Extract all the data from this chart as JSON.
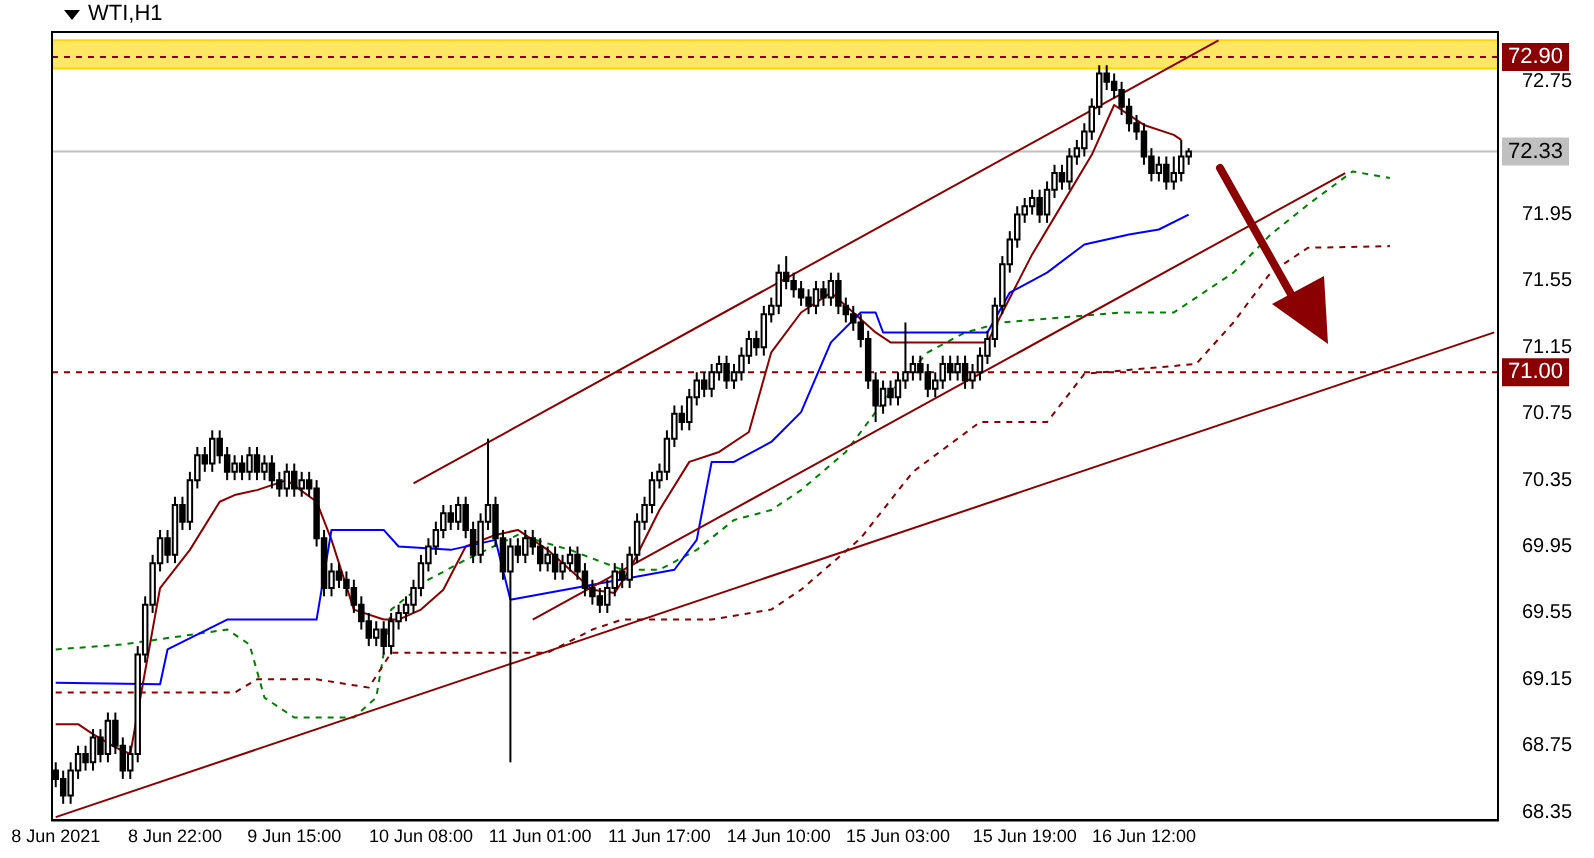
{
  "chart_data": {
    "type": "candlestick",
    "title": "WTI,H1",
    "categories": [
      "8 Jun 2021",
      null,
      null,
      null,
      null,
      null,
      null,
      null,
      null,
      null,
      null,
      null,
      null,
      null,
      null,
      null,
      "8 Jun 22:00",
      null,
      null,
      null,
      null,
      null,
      null,
      null,
      null,
      null,
      null,
      null,
      null,
      null,
      null,
      null,
      "9 Jun 15:00",
      null,
      null,
      null,
      null,
      null,
      null,
      null,
      null,
      null,
      null,
      null,
      null,
      null,
      null,
      null,
      null,
      "10 Jun 08:00",
      null,
      null,
      null,
      null,
      null,
      null,
      null,
      null,
      null,
      null,
      null,
      null,
      null,
      null,
      null,
      "11 Jun 01:00",
      null,
      null,
      null,
      null,
      null,
      null,
      null,
      null,
      null,
      null,
      null,
      null,
      null,
      null,
      null,
      "11 Jun 17:00",
      null,
      null,
      null,
      null,
      null,
      null,
      null,
      null,
      null,
      null,
      null,
      null,
      null,
      null,
      null,
      "14 Jun 10:00",
      null,
      null,
      null,
      null,
      null,
      null,
      null,
      null,
      null,
      null,
      null,
      null,
      null,
      null,
      null,
      "15 Jun 03:00",
      null,
      null,
      null,
      null,
      null,
      null,
      null,
      null,
      null,
      null,
      null,
      null,
      null,
      null,
      null,
      null,
      "15 Jun 19:00",
      null,
      null,
      null,
      null,
      null,
      null,
      null,
      null,
      null,
      null,
      null,
      null,
      null,
      null,
      null,
      "16 Jun 12:00",
      null,
      null,
      null,
      null,
      null,
      null,
      null,
      null,
      null,
      null,
      null,
      null,
      null,
      null,
      null,
      null,
      null,
      null,
      null,
      null,
      null,
      null,
      null,
      null,
      null,
      null,
      null,
      null,
      null,
      null,
      null,
      null,
      null,
      null,
      null,
      null,
      null,
      null,
      null,
      null,
      null,
      null,
      null,
      null,
      null,
      null,
      null
    ],
    "ohlc": [
      [
        68.6,
        68.65,
        68.5,
        68.55
      ],
      [
        68.55,
        68.6,
        68.4,
        68.45
      ],
      [
        68.45,
        68.65,
        68.4,
        68.6
      ],
      [
        68.6,
        68.75,
        68.55,
        68.7
      ],
      [
        68.7,
        68.75,
        68.6,
        68.65
      ],
      [
        68.65,
        68.85,
        68.6,
        68.8
      ],
      [
        68.8,
        68.85,
        68.65,
        68.7
      ],
      [
        68.7,
        68.95,
        68.65,
        68.9
      ],
      [
        68.9,
        68.95,
        68.7,
        68.75
      ],
      [
        68.75,
        68.8,
        68.55,
        68.6
      ],
      [
        68.6,
        68.75,
        68.55,
        68.7
      ],
      [
        68.7,
        69.35,
        68.65,
        69.3
      ],
      [
        69.3,
        69.65,
        69.25,
        69.6
      ],
      [
        69.6,
        69.9,
        69.55,
        69.85
      ],
      [
        69.85,
        70.05,
        69.8,
        70.0
      ],
      [
        70.0,
        70.05,
        69.85,
        69.9
      ],
      [
        69.9,
        70.25,
        69.85,
        70.2
      ],
      [
        70.2,
        70.25,
        70.05,
        70.1
      ],
      [
        70.1,
        70.4,
        70.05,
        70.35
      ],
      [
        70.35,
        70.55,
        70.3,
        70.5
      ],
      [
        70.5,
        70.55,
        70.4,
        70.45
      ],
      [
        70.45,
        70.65,
        70.4,
        70.6
      ],
      [
        70.6,
        70.65,
        70.45,
        70.5
      ],
      [
        70.5,
        70.55,
        70.35,
        70.4
      ],
      [
        70.4,
        70.5,
        70.35,
        70.45
      ],
      [
        70.45,
        70.5,
        70.35,
        70.4
      ],
      [
        70.4,
        70.55,
        70.35,
        70.5
      ],
      [
        70.5,
        70.55,
        70.35,
        70.4
      ],
      [
        70.4,
        70.5,
        70.35,
        70.45
      ],
      [
        70.45,
        70.5,
        70.3,
        70.35
      ],
      [
        70.35,
        70.4,
        70.25,
        70.3
      ],
      [
        70.3,
        70.45,
        70.25,
        70.4
      ],
      [
        70.4,
        70.45,
        70.25,
        70.3
      ],
      [
        70.3,
        70.4,
        70.25,
        70.35
      ],
      [
        70.35,
        70.4,
        70.25,
        70.3
      ],
      [
        70.3,
        70.35,
        69.95,
        70.0
      ],
      [
        70.0,
        70.05,
        69.65,
        69.7
      ],
      [
        69.7,
        69.85,
        69.65,
        69.8
      ],
      [
        69.8,
        69.85,
        69.7,
        69.75
      ],
      [
        69.75,
        69.8,
        69.65,
        69.7
      ],
      [
        69.7,
        69.75,
        69.55,
        69.6
      ],
      [
        69.6,
        69.65,
        69.45,
        69.5
      ],
      [
        69.5,
        69.55,
        69.35,
        69.4
      ],
      [
        69.4,
        69.5,
        69.35,
        69.45
      ],
      [
        69.45,
        69.5,
        69.3,
        69.35
      ],
      [
        69.35,
        69.55,
        69.3,
        69.5
      ],
      [
        69.5,
        69.6,
        69.45,
        69.55
      ],
      [
        69.55,
        69.65,
        69.5,
        69.6
      ],
      [
        69.6,
        69.75,
        69.55,
        69.7
      ],
      [
        69.7,
        69.9,
        69.65,
        69.85
      ],
      [
        69.85,
        70.0,
        69.8,
        69.95
      ],
      [
        69.95,
        70.1,
        69.9,
        70.05
      ],
      [
        70.05,
        70.2,
        70.0,
        70.15
      ],
      [
        70.15,
        70.2,
        70.05,
        70.1
      ],
      [
        70.1,
        70.25,
        70.05,
        70.2
      ],
      [
        70.2,
        70.25,
        70.0,
        70.05
      ],
      [
        70.05,
        70.1,
        69.85,
        69.9
      ],
      [
        69.9,
        70.15,
        69.85,
        70.1
      ],
      [
        70.1,
        70.6,
        70.05,
        70.2
      ],
      [
        70.2,
        70.25,
        69.95,
        70.0
      ],
      [
        70.0,
        70.05,
        69.75,
        69.8
      ],
      [
        69.8,
        70.0,
        68.65,
        69.95
      ],
      [
        69.95,
        70.0,
        69.85,
        69.9
      ],
      [
        69.9,
        70.05,
        69.85,
        70.0
      ],
      [
        70.0,
        70.05,
        69.9,
        69.95
      ],
      [
        69.95,
        70.0,
        69.8,
        69.85
      ],
      [
        69.85,
        69.95,
        69.8,
        69.9
      ],
      [
        69.9,
        69.95,
        69.75,
        69.8
      ],
      [
        69.8,
        69.9,
        69.75,
        69.85
      ],
      [
        69.85,
        69.95,
        69.8,
        69.9
      ],
      [
        69.9,
        69.95,
        69.75,
        69.8
      ],
      [
        69.8,
        69.85,
        69.65,
        69.7
      ],
      [
        69.7,
        69.75,
        69.6,
        69.65
      ],
      [
        69.65,
        69.7,
        69.55,
        69.6
      ],
      [
        69.6,
        69.75,
        69.55,
        69.7
      ],
      [
        69.7,
        69.85,
        69.65,
        69.8
      ],
      [
        69.8,
        69.85,
        69.7,
        69.75
      ],
      [
        69.75,
        69.95,
        69.7,
        69.9
      ],
      [
        69.9,
        70.15,
        69.85,
        70.1
      ],
      [
        70.1,
        70.25,
        70.05,
        70.2
      ],
      [
        70.2,
        70.4,
        70.15,
        70.35
      ],
      [
        70.35,
        70.45,
        70.3,
        70.4
      ],
      [
        70.4,
        70.65,
        70.35,
        70.6
      ],
      [
        70.6,
        70.8,
        70.55,
        70.75
      ],
      [
        70.75,
        70.8,
        70.65,
        70.7
      ],
      [
        70.7,
        70.9,
        70.65,
        70.85
      ],
      [
        70.85,
        71.0,
        70.8,
        70.95
      ],
      [
        70.95,
        71.0,
        70.85,
        70.9
      ],
      [
        70.9,
        71.05,
        70.85,
        71.0
      ],
      [
        71.0,
        71.1,
        70.95,
        71.05
      ],
      [
        71.05,
        71.1,
        70.9,
        70.95
      ],
      [
        70.95,
        71.05,
        70.9,
        71.0
      ],
      [
        71.0,
        71.15,
        70.95,
        71.1
      ],
      [
        71.1,
        71.25,
        71.05,
        71.2
      ],
      [
        71.2,
        71.25,
        71.1,
        71.15
      ],
      [
        71.15,
        71.4,
        71.1,
        71.35
      ],
      [
        71.35,
        71.45,
        71.3,
        71.4
      ],
      [
        71.4,
        71.65,
        71.35,
        71.6
      ],
      [
        71.6,
        71.7,
        71.5,
        71.55
      ],
      [
        71.55,
        71.6,
        71.45,
        71.5
      ],
      [
        71.5,
        71.55,
        71.4,
        71.45
      ],
      [
        71.45,
        71.5,
        71.35,
        71.4
      ],
      [
        71.4,
        71.55,
        71.35,
        71.5
      ],
      [
        71.5,
        71.55,
        71.4,
        71.45
      ],
      [
        71.45,
        71.6,
        71.4,
        71.55
      ],
      [
        71.55,
        71.6,
        71.35,
        71.4
      ],
      [
        71.4,
        71.45,
        71.3,
        71.35
      ],
      [
        71.35,
        71.4,
        71.25,
        71.3
      ],
      [
        71.3,
        71.35,
        71.15,
        71.2
      ],
      [
        71.2,
        71.25,
        70.9,
        70.95
      ],
      [
        70.95,
        71.0,
        70.7,
        70.8
      ],
      [
        70.8,
        70.95,
        70.75,
        70.9
      ],
      [
        70.9,
        70.95,
        70.8,
        70.85
      ],
      [
        70.85,
        71.0,
        70.8,
        70.95
      ],
      [
        70.95,
        71.3,
        70.9,
        71.0
      ],
      [
        71.0,
        71.1,
        70.95,
        71.05
      ],
      [
        71.05,
        71.1,
        70.95,
        71.0
      ],
      [
        71.0,
        71.05,
        70.85,
        70.9
      ],
      [
        70.9,
        71.0,
        70.85,
        70.95
      ],
      [
        70.95,
        71.1,
        70.9,
        71.05
      ],
      [
        71.05,
        71.1,
        70.95,
        71.0
      ],
      [
        71.0,
        71.1,
        70.95,
        71.05
      ],
      [
        71.05,
        71.1,
        70.9,
        70.95
      ],
      [
        70.95,
        71.05,
        70.9,
        71.0
      ],
      [
        71.0,
        71.15,
        70.95,
        71.1
      ],
      [
        71.1,
        71.25,
        71.05,
        71.2
      ],
      [
        71.2,
        71.45,
        71.15,
        71.4
      ],
      [
        71.4,
        71.7,
        71.35,
        71.65
      ],
      [
        71.65,
        71.85,
        71.6,
        71.8
      ],
      [
        71.8,
        72.0,
        71.75,
        71.95
      ],
      [
        71.95,
        72.05,
        71.9,
        72.0
      ],
      [
        72.0,
        72.1,
        71.95,
        72.05
      ],
      [
        72.05,
        72.1,
        71.9,
        71.95
      ],
      [
        71.95,
        72.15,
        71.9,
        72.1
      ],
      [
        72.1,
        72.25,
        72.05,
        72.2
      ],
      [
        72.2,
        72.25,
        72.1,
        72.15
      ],
      [
        72.15,
        72.35,
        72.1,
        72.3
      ],
      [
        72.3,
        72.4,
        72.25,
        72.35
      ],
      [
        72.35,
        72.5,
        72.3,
        72.45
      ],
      [
        72.45,
        72.65,
        72.4,
        72.6
      ],
      [
        72.6,
        72.85,
        72.55,
        72.8
      ],
      [
        72.8,
        72.85,
        72.7,
        72.75
      ],
      [
        72.75,
        72.8,
        72.65,
        72.7
      ],
      [
        72.7,
        72.75,
        72.55,
        72.6
      ],
      [
        72.6,
        72.65,
        72.45,
        72.5
      ],
      [
        72.5,
        72.55,
        72.4,
        72.45
      ],
      [
        72.45,
        72.5,
        72.25,
        72.3
      ],
      [
        72.3,
        72.35,
        72.15,
        72.2
      ],
      [
        72.2,
        72.3,
        72.15,
        72.25
      ],
      [
        72.25,
        72.3,
        72.1,
        72.15
      ],
      [
        72.15,
        72.3,
        72.1,
        72.2
      ],
      [
        72.2,
        72.4,
        72.15,
        72.3
      ],
      [
        72.3,
        72.35,
        72.25,
        72.33
      ],
      null,
      null,
      null,
      null,
      null,
      null,
      null,
      null,
      null,
      null,
      null,
      null,
      null,
      null,
      null,
      null,
      null,
      null,
      null,
      null,
      null,
      null,
      null,
      null,
      null,
      null,
      null,
      null,
      null,
      null,
      null,
      null,
      null,
      null,
      null,
      null,
      null,
      null,
      null,
      null,
      null
    ],
    "series": [
      {
        "type": "line",
        "color": "#008000",
        "line_style": "dashed",
        "values": [
          69.33,
          null,
          null,
          null,
          null,
          null,
          null,
          null,
          null,
          69.36,
          null,
          null,
          null,
          null,
          null,
          null,
          null,
          null,
          null,
          null,
          null,
          null,
          null,
          69.45,
          null,
          null,
          69.36,
          null,
          69.04,
          null,
          null,
          null,
          68.92,
          null,
          null,
          null,
          null,
          null,
          null,
          null,
          68.92,
          null,
          null,
          69.04,
          null,
          69.57,
          null,
          null,
          null,
          null,
          69.75,
          null,
          null,
          null,
          null,
          69.87,
          null,
          null,
          null,
          null,
          null,
          null,
          70.02,
          null,
          null,
          null,
          null,
          null,
          null,
          69.93,
          null,
          null,
          null,
          null,
          null,
          null,
          69.81,
          null,
          null,
          null,
          null,
          69.81,
          null,
          null,
          null,
          null,
          69.93,
          null,
          null,
          null,
          null,
          70.11,
          null,
          null,
          null,
          null,
          70.17,
          null,
          null,
          null,
          70.29,
          null,
          null,
          null,
          null,
          null,
          70.52,
          null,
          null,
          null,
          null,
          null,
          70.88,
          null,
          null,
          null,
          null,
          71.12,
          null,
          null,
          null,
          null,
          71.24,
          null,
          null,
          null,
          null,
          71.3,
          null,
          null,
          null,
          null,
          null,
          null,
          null,
          null,
          null,
          null,
          null,
          null,
          null,
          null,
          null,
          71.36,
          null,
          null,
          null,
          null,
          null,
          null,
          71.36,
          null,
          null,
          null,
          null,
          null,
          null,
          null,
          71.6,
          null,
          null,
          null,
          null,
          71.83,
          null,
          null,
          null,
          null,
          72.01,
          null,
          null,
          null,
          null,
          null,
          72.21,
          null,
          null,
          null,
          null,
          72.17,
          null,
          null,
          null,
          null,
          null,
          null,
          null,
          null,
          null,
          null,
          null,
          null,
          null,
          null
        ]
      },
      {
        "type": "line",
        "color": "#8b0000",
        "line_style": "dashed",
        "values": [
          69.07,
          null,
          null,
          null,
          null,
          null,
          null,
          null,
          null,
          null,
          null,
          null,
          null,
          null,
          null,
          null,
          null,
          null,
          null,
          null,
          null,
          null,
          null,
          null,
          69.07,
          null,
          null,
          69.15,
          null,
          null,
          null,
          null,
          null,
          null,
          null,
          69.15,
          null,
          null,
          null,
          null,
          null,
          null,
          69.1,
          null,
          null,
          69.31,
          null,
          null,
          null,
          null,
          null,
          null,
          null,
          null,
          null,
          null,
          null,
          null,
          null,
          null,
          null,
          null,
          null,
          null,
          null,
          null,
          69.31,
          null,
          null,
          null,
          null,
          null,
          69.45,
          null,
          null,
          null,
          69.51,
          null,
          null,
          null,
          null,
          null,
          null,
          null,
          null,
          null,
          null,
          null,
          69.51,
          null,
          null,
          null,
          null,
          null,
          null,
          null,
          69.57,
          null,
          null,
          null,
          69.69,
          null,
          null,
          null,
          null,
          null,
          null,
          null,
          70.0,
          null,
          null,
          null,
          null,
          null,
          null,
          70.4,
          null,
          null,
          null,
          null,
          null,
          null,
          null,
          null,
          70.7,
          null,
          null,
          null,
          null,
          null,
          null,
          null,
          null,
          70.7,
          null,
          null,
          null,
          null,
          70.99,
          null,
          null,
          null,
          null,
          null,
          null,
          null,
          null,
          null,
          null,
          null,
          null,
          null,
          null,
          71.05,
          null,
          null,
          null,
          null,
          71.3,
          null,
          null,
          null,
          null,
          71.6,
          null,
          null,
          null,
          null,
          71.75,
          null,
          null,
          null,
          null,
          null,
          null,
          null,
          null,
          null,
          null,
          71.76,
          null,
          null,
          null,
          null,
          null,
          null,
          null,
          null,
          null,
          null,
          null,
          null,
          null,
          null
        ]
      },
      {
        "type": "line",
        "color": "#8b0000",
        "values": [
          68.88,
          null,
          null,
          68.88,
          null,
          68.82,
          null,
          null,
          68.74,
          null,
          68.7,
          null,
          69.2,
          null,
          69.7,
          null,
          null,
          null,
          69.93,
          null,
          null,
          null,
          70.22,
          null,
          70.26,
          null,
          null,
          70.29,
          null,
          null,
          null,
          70.35,
          null,
          null,
          null,
          70.22,
          null,
          69.99,
          null,
          null,
          69.57,
          null,
          null,
          null,
          69.51,
          null,
          69.51,
          null,
          null,
          69.57,
          null,
          null,
          69.69,
          null,
          null,
          69.95,
          null,
          null,
          null,
          70.02,
          null,
          null,
          70.05,
          null,
          null,
          null,
          69.93,
          null,
          null,
          69.81,
          null,
          null,
          69.69,
          null,
          null,
          69.67,
          null,
          69.81,
          null,
          null,
          null,
          70.17,
          null,
          null,
          null,
          70.46,
          null,
          null,
          null,
          70.52,
          null,
          null,
          null,
          70.64,
          null,
          null,
          71.12,
          null,
          null,
          null,
          71.36,
          null,
          null,
          null,
          71.48,
          null,
          null,
          71.36,
          null,
          null,
          71.24,
          null,
          71.18,
          null,
          null,
          null,
          null,
          71.18,
          null,
          null,
          null,
          null,
          null,
          null,
          null,
          71.18,
          null,
          71.36,
          null,
          null,
          null,
          71.71,
          null,
          null,
          null,
          72.01,
          null,
          null,
          null,
          72.31,
          null,
          null,
          72.61,
          null,
          null,
          null,
          72.49,
          null,
          null,
          null,
          72.43,
          72.4,
          null,
          null,
          null,
          null,
          null,
          null,
          null,
          null,
          null,
          null,
          null,
          null,
          null,
          null,
          null,
          null,
          null,
          null,
          null,
          null,
          null,
          null,
          null,
          null,
          null,
          null,
          null,
          null,
          null,
          null,
          null,
          null,
          null,
          null,
          null,
          null,
          null,
          null,
          null,
          null,
          null,
          null
        ]
      },
      {
        "type": "line",
        "color": "#0000ff",
        "values": [
          69.13,
          null,
          null,
          null,
          null,
          null,
          null,
          null,
          null,
          null,
          null,
          null,
          null,
          null,
          69.12,
          69.33,
          null,
          null,
          null,
          null,
          null,
          null,
          null,
          69.51,
          null,
          null,
          null,
          null,
          null,
          null,
          null,
          null,
          null,
          null,
          null,
          69.51,
          null,
          70.05,
          null,
          null,
          null,
          null,
          null,
          null,
          70.05,
          null,
          69.95,
          null,
          null,
          null,
          null,
          null,
          null,
          69.93,
          null,
          null,
          null,
          null,
          null,
          69.99,
          null,
          69.63,
          null,
          null,
          null,
          null,
          null,
          null,
          null,
          null,
          null,
          null,
          null,
          null,
          null,
          null,
          null,
          null,
          null,
          null,
          null,
          null,
          null,
          69.81,
          null,
          null,
          69.99,
          null,
          70.46,
          null,
          null,
          70.46,
          null,
          null,
          null,
          null,
          70.58,
          null,
          null,
          null,
          70.76,
          null,
          null,
          null,
          71.18,
          null,
          null,
          null,
          71.36,
          null,
          71.36,
          71.24,
          null,
          null,
          null,
          null,
          null,
          null,
          null,
          null,
          null,
          null,
          null,
          null,
          null,
          71.24,
          null,
          null,
          71.48,
          null,
          null,
          null,
          null,
          71.6,
          null,
          null,
          null,
          null,
          71.77,
          null,
          null,
          null,
          null,
          null,
          71.83,
          null,
          null,
          null,
          71.86,
          null,
          null,
          null,
          71.95,
          null,
          null,
          null,
          null,
          null,
          null,
          null,
          null,
          null,
          null,
          null,
          null,
          null,
          null,
          null,
          null,
          null,
          null,
          null,
          null,
          null,
          null,
          null,
          null,
          null,
          null,
          null,
          null,
          null,
          null,
          null,
          null,
          null,
          null,
          null,
          null,
          null,
          null,
          null,
          null,
          null
        ]
      },
      {
        "type": "line",
        "color": "#8b0000",
        "values": [
          null,
          null,
          null,
          null,
          null,
          null,
          null,
          null,
          null,
          null,
          null,
          null,
          null,
          null,
          null,
          null,
          null,
          null,
          null,
          null,
          null,
          null,
          null,
          null,
          null,
          null,
          null,
          null,
          null,
          null,
          null,
          null,
          null,
          null,
          null,
          null,
          null,
          null,
          null,
          null,
          null,
          null,
          null,
          null,
          null,
          null,
          null,
          null,
          70.33,
          null,
          null,
          null,
          null,
          null,
          null,
          null,
          null,
          null,
          null,
          null,
          null,
          null,
          null,
          null,
          null,
          null,
          null,
          null,
          null,
          null,
          null,
          null,
          null,
          null,
          null,
          null,
          null,
          null,
          null,
          null,
          null,
          null,
          null,
          null,
          null,
          null,
          null,
          null,
          null,
          null,
          null,
          null,
          null,
          null,
          null,
          null,
          null,
          null,
          null,
          null,
          null,
          null,
          null,
          null,
          null,
          null,
          null,
          null,
          null,
          null,
          null,
          null,
          null,
          null,
          null,
          null,
          null,
          null,
          null,
          null,
          null,
          null,
          null,
          null,
          null,
          null,
          null,
          null,
          null,
          null,
          null,
          null,
          null,
          null,
          null,
          null,
          null,
          null,
          null,
          null,
          null,
          null,
          null,
          null,
          null,
          null,
          null,
          null,
          null,
          null,
          null,
          null,
          null,
          null,
          null,
          null,
          73.0,
          null,
          null,
          null,
          null,
          null,
          null,
          null,
          null,
          null,
          null,
          null,
          null,
          null,
          null,
          null,
          null,
          null,
          null,
          null,
          null,
          null,
          null,
          null,
          null,
          null,
          null,
          null,
          null,
          null,
          null,
          null,
          null,
          null,
          null,
          null,
          null,
          null
        ]
      },
      {
        "type": "line",
        "color": "#8b0000",
        "values": [
          null,
          null,
          null,
          null,
          null,
          null,
          null,
          null,
          null,
          null,
          null,
          null,
          null,
          null,
          null,
          null,
          null,
          null,
          null,
          null,
          null,
          null,
          null,
          null,
          null,
          null,
          null,
          null,
          null,
          null,
          null,
          null,
          null,
          null,
          null,
          null,
          null,
          null,
          null,
          null,
          null,
          null,
          null,
          null,
          null,
          null,
          null,
          null,
          null,
          null,
          null,
          null,
          null,
          null,
          null,
          null,
          null,
          null,
          null,
          null,
          null,
          null,
          null,
          null,
          69.51,
          null,
          null,
          null,
          null,
          null,
          null,
          null,
          null,
          null,
          null,
          null,
          null,
          null,
          null,
          null,
          null,
          null,
          null,
          null,
          null,
          null,
          null,
          null,
          null,
          null,
          null,
          null,
          null,
          null,
          null,
          null,
          null,
          null,
          null,
          null,
          null,
          null,
          null,
          null,
          null,
          null,
          null,
          null,
          null,
          null,
          null,
          null,
          null,
          null,
          null,
          null,
          null,
          null,
          null,
          null,
          null,
          null,
          null,
          null,
          null,
          null,
          null,
          null,
          null,
          null,
          null,
          null,
          null,
          null,
          null,
          null,
          null,
          null,
          null,
          null,
          null,
          null,
          null,
          null,
          null,
          null,
          null,
          null,
          null,
          null,
          null,
          null,
          null,
          null,
          null,
          null,
          null,
          null,
          null,
          null,
          null,
          null,
          null,
          null,
          null,
          null,
          null,
          null,
          null,
          null,
          null,
          null,
          null,
          72.2,
          null,
          null,
          null,
          null,
          null,
          null,
          null,
          null,
          null,
          null,
          null,
          null,
          null,
          null,
          null,
          null,
          null,
          null,
          null,
          null
        ]
      },
      {
        "type": "line",
        "color": "#8b0000",
        "values": [
          68.32,
          null,
          null,
          null,
          null,
          null,
          null,
          null,
          null,
          null,
          null,
          null,
          null,
          null,
          null,
          null,
          null,
          null,
          null,
          null,
          null,
          null,
          null,
          null,
          null,
          null,
          null,
          null,
          null,
          null,
          null,
          null,
          null,
          null,
          null,
          null,
          null,
          null,
          null,
          null,
          null,
          null,
          null,
          null,
          null,
          null,
          null,
          null,
          null,
          null,
          null,
          null,
          null,
          null,
          null,
          null,
          null,
          null,
          null,
          null,
          null,
          null,
          null,
          null,
          null,
          null,
          null,
          null,
          null,
          null,
          null,
          null,
          null,
          null,
          null,
          null,
          null,
          null,
          null,
          null,
          null,
          null,
          null,
          null,
          null,
          null,
          null,
          null,
          null,
          null,
          null,
          null,
          null,
          null,
          null,
          null,
          null,
          null,
          null,
          null,
          null,
          null,
          null,
          null,
          null,
          null,
          null,
          null,
          null,
          null,
          null,
          null,
          null,
          null,
          null,
          null,
          null,
          null,
          null,
          null,
          null,
          null,
          null,
          null,
          null,
          null,
          null,
          null,
          null,
          null,
          null,
          null,
          null,
          null,
          null,
          null,
          null,
          null,
          null,
          null,
          null,
          null,
          null,
          null,
          null,
          null,
          null,
          null,
          null,
          null,
          null,
          null,
          null,
          null,
          null,
          null,
          null,
          null,
          null,
          null,
          null,
          null,
          null,
          null,
          null,
          null,
          null,
          null,
          null,
          null,
          null,
          null,
          null,
          null,
          null,
          null,
          null,
          null,
          null,
          null,
          null,
          null,
          null,
          null,
          null,
          null,
          null,
          null,
          null,
          null,
          null,
          null,
          null,
          71.24
        ]
      }
    ],
    "ylim": [
      68.3,
      73.05
    ],
    "yticks": [
      68.35,
      68.75,
      69.15,
      69.55,
      69.95,
      70.35,
      70.75,
      71.15,
      71.55,
      71.95,
      72.75
    ],
    "ref_lines": [
      {
        "axis": "y",
        "value": 72.9,
        "label": "72.90",
        "color": "#8b0000",
        "line_style": "dashed"
      },
      {
        "axis": "y",
        "value": 72.33,
        "label": "72.33",
        "color": "#c0c0c0",
        "line_style": "solid"
      },
      {
        "axis": "y",
        "value": 71.0,
        "label": "71.00",
        "color": "#8b0000",
        "line_style": "dashed"
      }
    ],
    "bands": [
      {
        "axis": "y",
        "from": 72.83,
        "to": 73.0,
        "color": "#ffd700"
      }
    ],
    "marker": "none"
  }
}
